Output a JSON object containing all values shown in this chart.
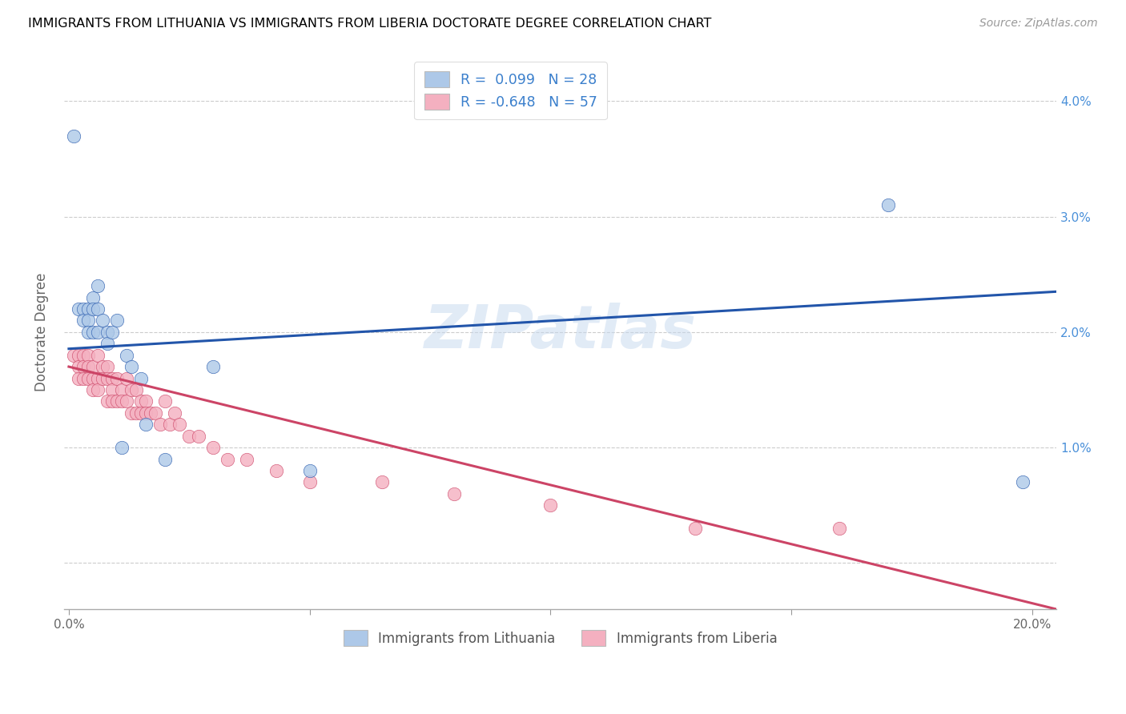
{
  "title": "IMMIGRANTS FROM LITHUANIA VS IMMIGRANTS FROM LIBERIA DOCTORATE DEGREE CORRELATION CHART",
  "source": "Source: ZipAtlas.com",
  "ylabel": "Doctorate Degree",
  "blue_color": "#adc8e8",
  "pink_color": "#f4b0c0",
  "blue_line_color": "#2255aa",
  "pink_line_color": "#cc4466",
  "watermark": "ZIPatlas",
  "r_blue": 0.099,
  "n_blue": 28,
  "r_pink": -0.648,
  "n_pink": 57,
  "xlim": [
    -0.001,
    0.205
  ],
  "ylim": [
    -0.004,
    0.044
  ],
  "x_ticks": [
    0.0,
    0.05,
    0.1,
    0.15,
    0.2
  ],
  "x_tick_labels": [
    "0.0%",
    "",
    "",
    "",
    "20.0%"
  ],
  "y_ticks": [
    0.0,
    0.01,
    0.02,
    0.03,
    0.04
  ],
  "y_tick_labels_left": [
    "",
    "",
    "",
    "",
    ""
  ],
  "y_tick_labels_right": [
    "",
    "1.0%",
    "2.0%",
    "3.0%",
    "4.0%"
  ],
  "blue_line_x0": 0.0,
  "blue_line_y0": 0.01855,
  "blue_line_x1": 0.205,
  "blue_line_y1": 0.0235,
  "pink_line_x0": 0.0,
  "pink_line_y0": 0.017,
  "pink_line_x1": 0.205,
  "pink_line_y1": -0.004,
  "lithuania_x": [
    0.001,
    0.002,
    0.003,
    0.003,
    0.004,
    0.004,
    0.004,
    0.005,
    0.005,
    0.005,
    0.006,
    0.006,
    0.006,
    0.007,
    0.008,
    0.008,
    0.009,
    0.01,
    0.011,
    0.012,
    0.013,
    0.015,
    0.016,
    0.02,
    0.03,
    0.05,
    0.17,
    0.198
  ],
  "lithuania_y": [
    0.037,
    0.022,
    0.022,
    0.021,
    0.022,
    0.021,
    0.02,
    0.023,
    0.022,
    0.02,
    0.024,
    0.022,
    0.02,
    0.021,
    0.02,
    0.019,
    0.02,
    0.021,
    0.01,
    0.018,
    0.017,
    0.016,
    0.012,
    0.009,
    0.017,
    0.008,
    0.031,
    0.007
  ],
  "liberia_x": [
    0.001,
    0.002,
    0.002,
    0.002,
    0.003,
    0.003,
    0.003,
    0.004,
    0.004,
    0.004,
    0.005,
    0.005,
    0.005,
    0.006,
    0.006,
    0.006,
    0.007,
    0.007,
    0.008,
    0.008,
    0.008,
    0.009,
    0.009,
    0.009,
    0.01,
    0.01,
    0.011,
    0.011,
    0.012,
    0.012,
    0.013,
    0.013,
    0.014,
    0.014,
    0.015,
    0.015,
    0.016,
    0.016,
    0.017,
    0.018,
    0.019,
    0.02,
    0.021,
    0.022,
    0.023,
    0.025,
    0.027,
    0.03,
    0.033,
    0.037,
    0.043,
    0.05,
    0.065,
    0.08,
    0.1,
    0.13,
    0.16
  ],
  "liberia_y": [
    0.018,
    0.018,
    0.017,
    0.016,
    0.018,
    0.017,
    0.016,
    0.018,
    0.017,
    0.016,
    0.017,
    0.016,
    0.015,
    0.018,
    0.016,
    0.015,
    0.017,
    0.016,
    0.017,
    0.016,
    0.014,
    0.016,
    0.015,
    0.014,
    0.016,
    0.014,
    0.015,
    0.014,
    0.016,
    0.014,
    0.015,
    0.013,
    0.015,
    0.013,
    0.014,
    0.013,
    0.014,
    0.013,
    0.013,
    0.013,
    0.012,
    0.014,
    0.012,
    0.013,
    0.012,
    0.011,
    0.011,
    0.01,
    0.009,
    0.009,
    0.008,
    0.007,
    0.007,
    0.006,
    0.005,
    0.003,
    0.003
  ]
}
